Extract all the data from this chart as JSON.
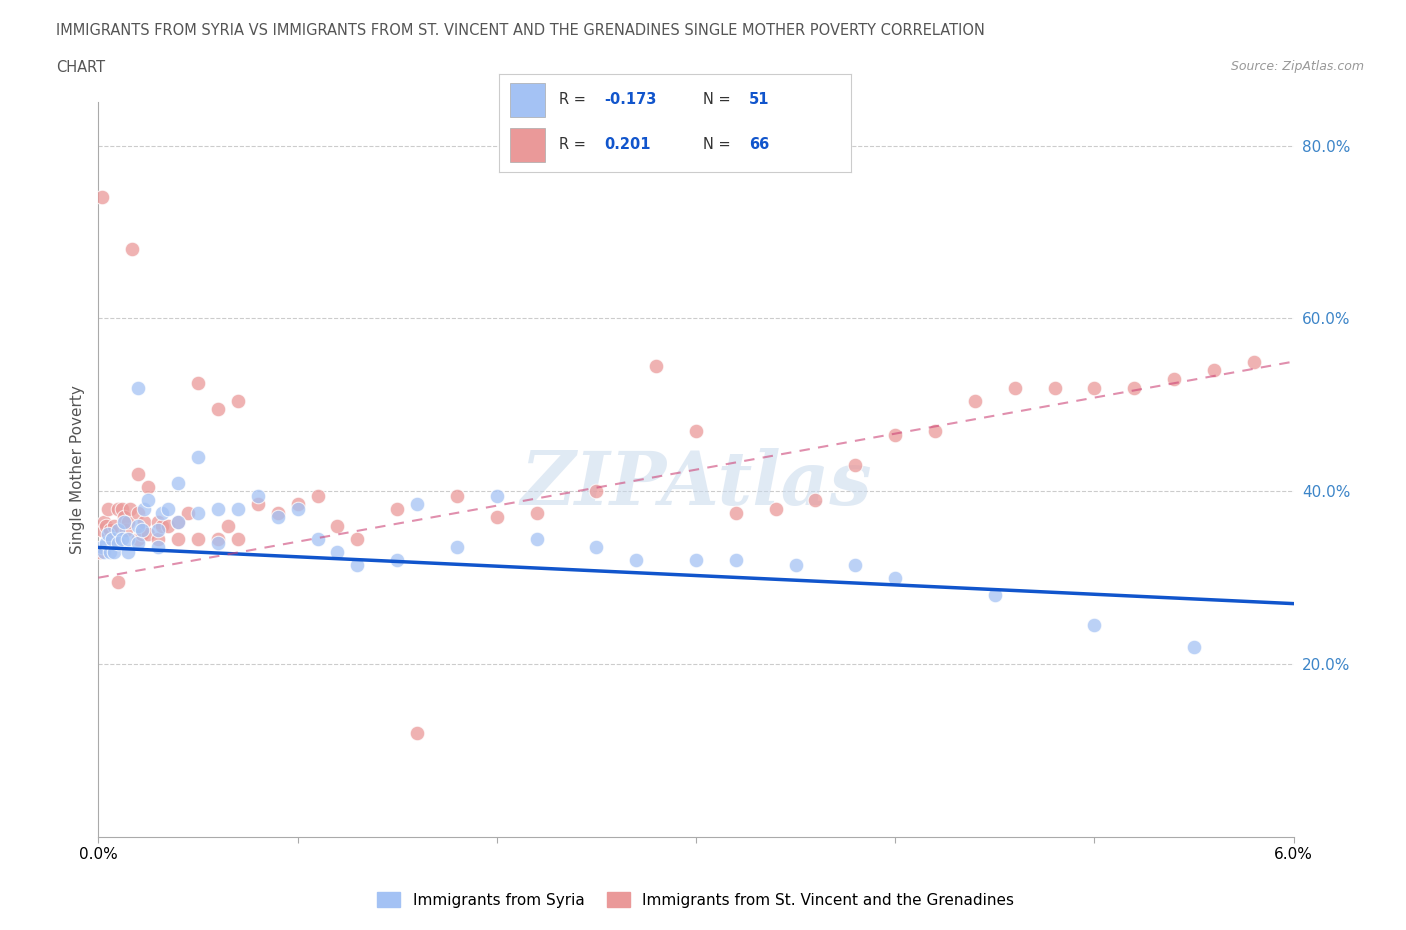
{
  "title_line1": "IMMIGRANTS FROM SYRIA VS IMMIGRANTS FROM ST. VINCENT AND THE GRENADINES SINGLE MOTHER POVERTY CORRELATION",
  "title_line2": "CHART",
  "source": "Source: ZipAtlas.com",
  "ylabel": "Single Mother Poverty",
  "xlim": [
    0.0,
    0.06
  ],
  "ylim": [
    0.0,
    0.85
  ],
  "ytick_positions": [
    0.2,
    0.4,
    0.6,
    0.8
  ],
  "ytick_labels": [
    "20.0%",
    "40.0%",
    "60.0%",
    "80.0%"
  ],
  "syria_color": "#a4c2f4",
  "svg_color": "#ea9999",
  "syria_line_color": "#1155cc",
  "svg_line_color": "#cc4477",
  "legend_label_syria": "Immigrants from Syria",
  "legend_label_svg": "Immigrants from St. Vincent and the Grenadines",
  "watermark": "ZIPAtlas",
  "background_color": "#ffffff",
  "grid_color": "#cccccc",
  "syria_R": -0.173,
  "syria_N": 51,
  "svg_R": 0.201,
  "svg_N": 66,
  "syria_scatter_x": [
    0.0002,
    0.0003,
    0.0004,
    0.0005,
    0.0006,
    0.0007,
    0.0008,
    0.001,
    0.001,
    0.0012,
    0.0013,
    0.0015,
    0.0015,
    0.002,
    0.002,
    0.002,
    0.0022,
    0.0023,
    0.0025,
    0.003,
    0.003,
    0.0032,
    0.0035,
    0.004,
    0.004,
    0.005,
    0.005,
    0.006,
    0.006,
    0.007,
    0.008,
    0.009,
    0.01,
    0.011,
    0.012,
    0.013,
    0.015,
    0.016,
    0.018,
    0.02,
    0.022,
    0.025,
    0.027,
    0.03,
    0.032,
    0.035,
    0.038,
    0.04,
    0.045,
    0.05,
    0.055
  ],
  "syria_scatter_y": [
    0.335,
    0.33,
    0.34,
    0.35,
    0.33,
    0.345,
    0.33,
    0.355,
    0.34,
    0.345,
    0.365,
    0.33,
    0.345,
    0.36,
    0.34,
    0.52,
    0.355,
    0.38,
    0.39,
    0.335,
    0.355,
    0.375,
    0.38,
    0.365,
    0.41,
    0.375,
    0.44,
    0.34,
    0.38,
    0.38,
    0.395,
    0.37,
    0.38,
    0.345,
    0.33,
    0.315,
    0.32,
    0.385,
    0.335,
    0.395,
    0.345,
    0.335,
    0.32,
    0.32,
    0.32,
    0.315,
    0.315,
    0.3,
    0.28,
    0.245,
    0.22
  ],
  "svg_scatter_x": [
    0.0001,
    0.0002,
    0.0002,
    0.0003,
    0.0004,
    0.0005,
    0.0006,
    0.0007,
    0.0008,
    0.001,
    0.001,
    0.0012,
    0.0013,
    0.0014,
    0.0015,
    0.0016,
    0.0017,
    0.002,
    0.002,
    0.002,
    0.0022,
    0.0023,
    0.0025,
    0.0025,
    0.003,
    0.003,
    0.0032,
    0.0035,
    0.004,
    0.004,
    0.0045,
    0.005,
    0.005,
    0.006,
    0.006,
    0.0065,
    0.007,
    0.007,
    0.008,
    0.009,
    0.01,
    0.011,
    0.012,
    0.013,
    0.015,
    0.016,
    0.018,
    0.02,
    0.022,
    0.025,
    0.028,
    0.03,
    0.032,
    0.034,
    0.036,
    0.038,
    0.04,
    0.042,
    0.044,
    0.046,
    0.048,
    0.05,
    0.052,
    0.054,
    0.056,
    0.058
  ],
  "svg_scatter_y": [
    0.33,
    0.74,
    0.355,
    0.365,
    0.36,
    0.38,
    0.355,
    0.345,
    0.36,
    0.38,
    0.295,
    0.38,
    0.37,
    0.355,
    0.365,
    0.38,
    0.68,
    0.345,
    0.375,
    0.42,
    0.35,
    0.365,
    0.35,
    0.405,
    0.345,
    0.365,
    0.36,
    0.36,
    0.345,
    0.365,
    0.375,
    0.345,
    0.525,
    0.345,
    0.495,
    0.36,
    0.345,
    0.505,
    0.385,
    0.375,
    0.385,
    0.395,
    0.36,
    0.345,
    0.38,
    0.12,
    0.395,
    0.37,
    0.375,
    0.4,
    0.545,
    0.47,
    0.375,
    0.38,
    0.39,
    0.43,
    0.465,
    0.47,
    0.505,
    0.52,
    0.52,
    0.52,
    0.52,
    0.53,
    0.54,
    0.55
  ]
}
